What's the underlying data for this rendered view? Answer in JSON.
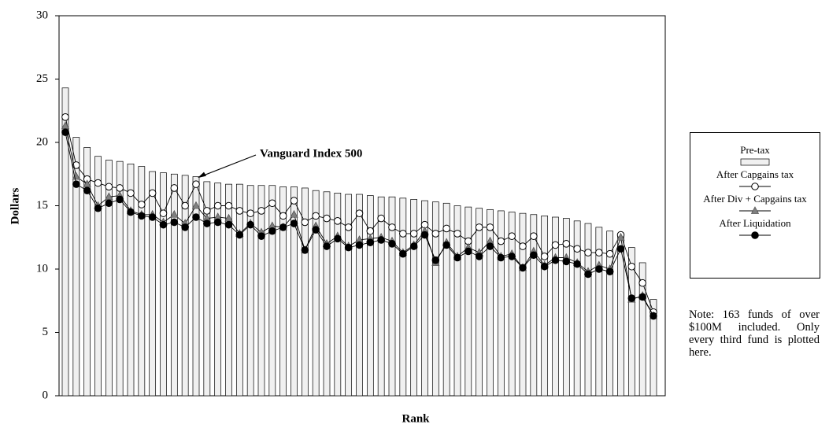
{
  "chart_data": {
    "type": "bar_line",
    "xlabel": "Rank",
    "ylabel": "Dollars",
    "ylim": [
      0,
      30
    ],
    "yticks": [
      0,
      5,
      10,
      15,
      20,
      25,
      30
    ],
    "annotation": {
      "text": "Vanguard Index 500",
      "index": 12
    },
    "note": "Note: 163 funds of over $100M included. Only every third fund is plotted here.",
    "series": [
      {
        "name": "Pre-tax",
        "type": "bar",
        "color": "#f0f0f0",
        "values": [
          24.3,
          20.4,
          19.6,
          18.9,
          18.6,
          18.5,
          18.3,
          18.1,
          17.7,
          17.6,
          17.5,
          17.4,
          17.3,
          16.9,
          16.8,
          16.7,
          16.7,
          16.6,
          16.6,
          16.6,
          16.5,
          16.5,
          16.4,
          16.2,
          16.1,
          16.0,
          15.9,
          15.9,
          15.8,
          15.7,
          15.7,
          15.6,
          15.5,
          15.4,
          15.3,
          15.2,
          15.0,
          14.9,
          14.8,
          14.7,
          14.6,
          14.5,
          14.4,
          14.3,
          14.2,
          14.1,
          14.0,
          13.8,
          13.6,
          13.3,
          13.0,
          12.8,
          11.7,
          10.5,
          7.6
        ]
      },
      {
        "name": "After Capgains tax",
        "type": "line",
        "marker": "circle",
        "color": "#ffffff",
        "values": [
          22.0,
          18.2,
          17.1,
          16.8,
          16.5,
          16.4,
          16.0,
          15.1,
          16.0,
          14.4,
          16.4,
          15.0,
          16.7,
          14.6,
          15.0,
          15.0,
          14.6,
          14.4,
          14.6,
          15.2,
          14.2,
          15.4,
          13.7,
          14.2,
          14.0,
          13.8,
          13.3,
          14.4,
          13.0,
          14.0,
          13.3,
          12.8,
          12.8,
          13.5,
          12.8,
          13.2,
          12.8,
          12.2,
          13.3,
          13.3,
          12.2,
          12.6,
          11.8,
          12.6,
          11.0,
          11.9,
          12.0,
          11.6,
          11.3,
          11.3,
          11.2,
          12.7,
          10.2,
          8.9,
          6.6
        ]
      },
      {
        "name": "After Div + Capgains tax",
        "type": "line",
        "marker": "triangle",
        "color": "#808080",
        "values": [
          21.3,
          17.3,
          16.7,
          15.0,
          15.7,
          15.8,
          14.6,
          14.3,
          14.3,
          13.7,
          14.3,
          13.6,
          15.0,
          14.0,
          14.1,
          14.0,
          12.8,
          13.6,
          12.9,
          13.4,
          13.3,
          14.3,
          11.5,
          13.4,
          12.0,
          12.6,
          11.8,
          12.3,
          12.4,
          12.5,
          12.2,
          11.3,
          11.9,
          13.0,
          10.5,
          12.1,
          11.0,
          11.7,
          11.3,
          12.2,
          11.0,
          11.2,
          10.1,
          11.4,
          10.3,
          10.9,
          10.9,
          10.5,
          9.8,
          10.3,
          10.0,
          12.5,
          7.6,
          7.9,
          6.3
        ]
      },
      {
        "name": "After Liquidation",
        "type": "line",
        "marker": "dot",
        "color": "#000000",
        "values": [
          20.8,
          16.7,
          16.2,
          14.8,
          15.2,
          15.5,
          14.5,
          14.2,
          14.1,
          13.5,
          13.7,
          13.3,
          14.1,
          13.6,
          13.7,
          13.5,
          12.7,
          13.5,
          12.6,
          13.0,
          13.3,
          13.6,
          11.5,
          13.1,
          11.8,
          12.4,
          11.7,
          11.9,
          12.1,
          12.3,
          12.0,
          11.2,
          11.8,
          12.7,
          10.7,
          11.9,
          10.9,
          11.4,
          11.0,
          11.8,
          10.9,
          11.0,
          10.1,
          11.1,
          10.2,
          10.7,
          10.6,
          10.4,
          9.6,
          10.0,
          9.8,
          11.6,
          7.7,
          7.8,
          6.3
        ]
      }
    ]
  }
}
